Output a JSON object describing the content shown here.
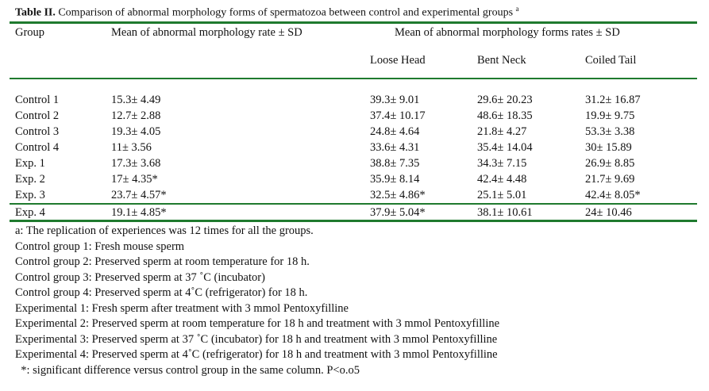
{
  "title": {
    "bold": "Table II.",
    "rest": " Comparison of abnormal morphology forms of spermatozoa between control and experimental groups ",
    "sup": "a"
  },
  "header": {
    "group": "Group",
    "mean_rate": "Mean of abnormal morphology rate ± SD",
    "mean_forms": "Mean of abnormal morphology forms rates ± SD",
    "loose_head": "Loose Head",
    "bent_neck": "Bent Neck",
    "coiled_tail": "Coiled Tail"
  },
  "rows": [
    {
      "group": "Control 1",
      "rate": "15.3± 4.49",
      "loose": "39.3± 9.01",
      "bent": "29.6± 20.23",
      "coiled": "31.2± 16.87"
    },
    {
      "group": "Control 2",
      "rate": "12.7± 2.88",
      "loose": "37.4± 10.17",
      "bent": "48.6± 18.35",
      "coiled": "19.9± 9.75"
    },
    {
      "group": "Control 3",
      "rate": "19.3± 4.05",
      "loose": "24.8± 4.64",
      "bent": "21.8± 4.27",
      "coiled": "53.3± 3.38"
    },
    {
      "group": "Control 4",
      "rate": "11± 3.56",
      "loose": "33.6± 4.31",
      "bent": "35.4± 14.04",
      "coiled": "30± 15.89"
    },
    {
      "group": "Exp. 1",
      "rate": "17.3± 3.68",
      "loose": "38.8± 7.35",
      "bent": "34.3± 7.15",
      "coiled": "26.9± 8.85"
    },
    {
      "group": "Exp. 2",
      "rate": "17± 4.35*",
      "loose": "35.9± 8.14",
      "bent": "42.4± 4.48",
      "coiled": "21.7± 9.69"
    },
    {
      "group": "Exp. 3",
      "rate": "23.7± 4.57*",
      "loose": "32.5± 4.86*",
      "bent": "25.1± 5.01",
      "coiled": "42.4± 8.05*"
    },
    {
      "group": "Exp. 4",
      "rate": "19.1± 4.85*",
      "loose": "37.9± 5.04*",
      "bent": "38.1± 10.61",
      "coiled": "24± 10.46"
    }
  ],
  "footnotes": [
    "a: The replication of experiences was 12 times for all the groups.",
    "Control group 1: Fresh mouse sperm",
    "Control group 2: Preserved sperm at room temperature for 18 h.",
    "Control group 3: Preserved sperm at 37 ˚C (incubator)",
    "Control group 4: Preserved sperm at 4˚C (refrigerator) for 18 h.",
    "Experimental 1: Fresh sperm after treatment with 3 mmol Pentoxyfilline",
    "Experimental 2: Preserved sperm at room temperature for 18 h and treatment with 3 mmol Pentoxyfilline",
    "Experimental 3: Preserved sperm at 37 ˚C (incubator) for 18 h and treatment with 3 mmol Pentoxyfilline",
    "Experimental 4: Preserved sperm at 4˚C (refrigerator) for 18 h and treatment with 3 mmol Pentoxyfilline",
    "  *: significant difference versus control group in the same column. P<o.o5"
  ],
  "colors": {
    "rule": "#1f7a2e"
  }
}
